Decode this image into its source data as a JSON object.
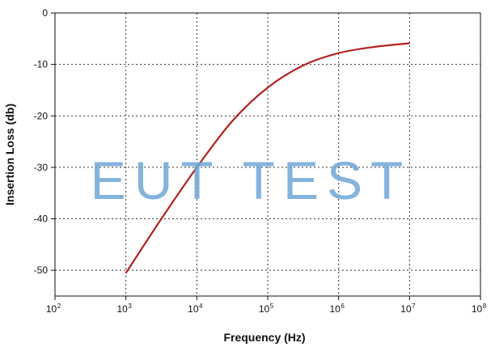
{
  "chart_data": {
    "type": "line",
    "xlabel": "Frequency (Hz)",
    "ylabel": "Insertion Loss (db)",
    "x_scale": "log10",
    "xlim": [
      100,
      100000000
    ],
    "ylim": [
      -55,
      0
    ],
    "x_ticks": [
      {
        "base": "10",
        "exp": "2",
        "value": 100
      },
      {
        "base": "10",
        "exp": "3",
        "value": 1000
      },
      {
        "base": "10",
        "exp": "4",
        "value": 10000
      },
      {
        "base": "10",
        "exp": "5",
        "value": 100000
      },
      {
        "base": "10",
        "exp": "6",
        "value": 1000000
      },
      {
        "base": "10",
        "exp": "7",
        "value": 10000000
      },
      {
        "base": "10",
        "exp": "8",
        "value": 100000000
      }
    ],
    "y_ticks": [
      {
        "label": "0",
        "value": 0
      },
      {
        "label": "-10",
        "value": -10
      },
      {
        "label": "-20",
        "value": -20
      },
      {
        "label": "-30",
        "value": -30
      },
      {
        "label": "-40",
        "value": -40
      },
      {
        "label": "-50",
        "value": -50
      }
    ],
    "grid": "dotted",
    "series": [
      {
        "color": "#b22222",
        "x": [
          1000,
          3162,
          10000,
          31623,
          100000,
          316228,
          1000000,
          3162278,
          10000000
        ],
        "y": [
          -50.5,
          -40,
          -30,
          -21,
          -14.5,
          -10.2,
          -7.8,
          -6.6,
          -5.9
        ]
      }
    ]
  },
  "watermark": "EUT TEST"
}
